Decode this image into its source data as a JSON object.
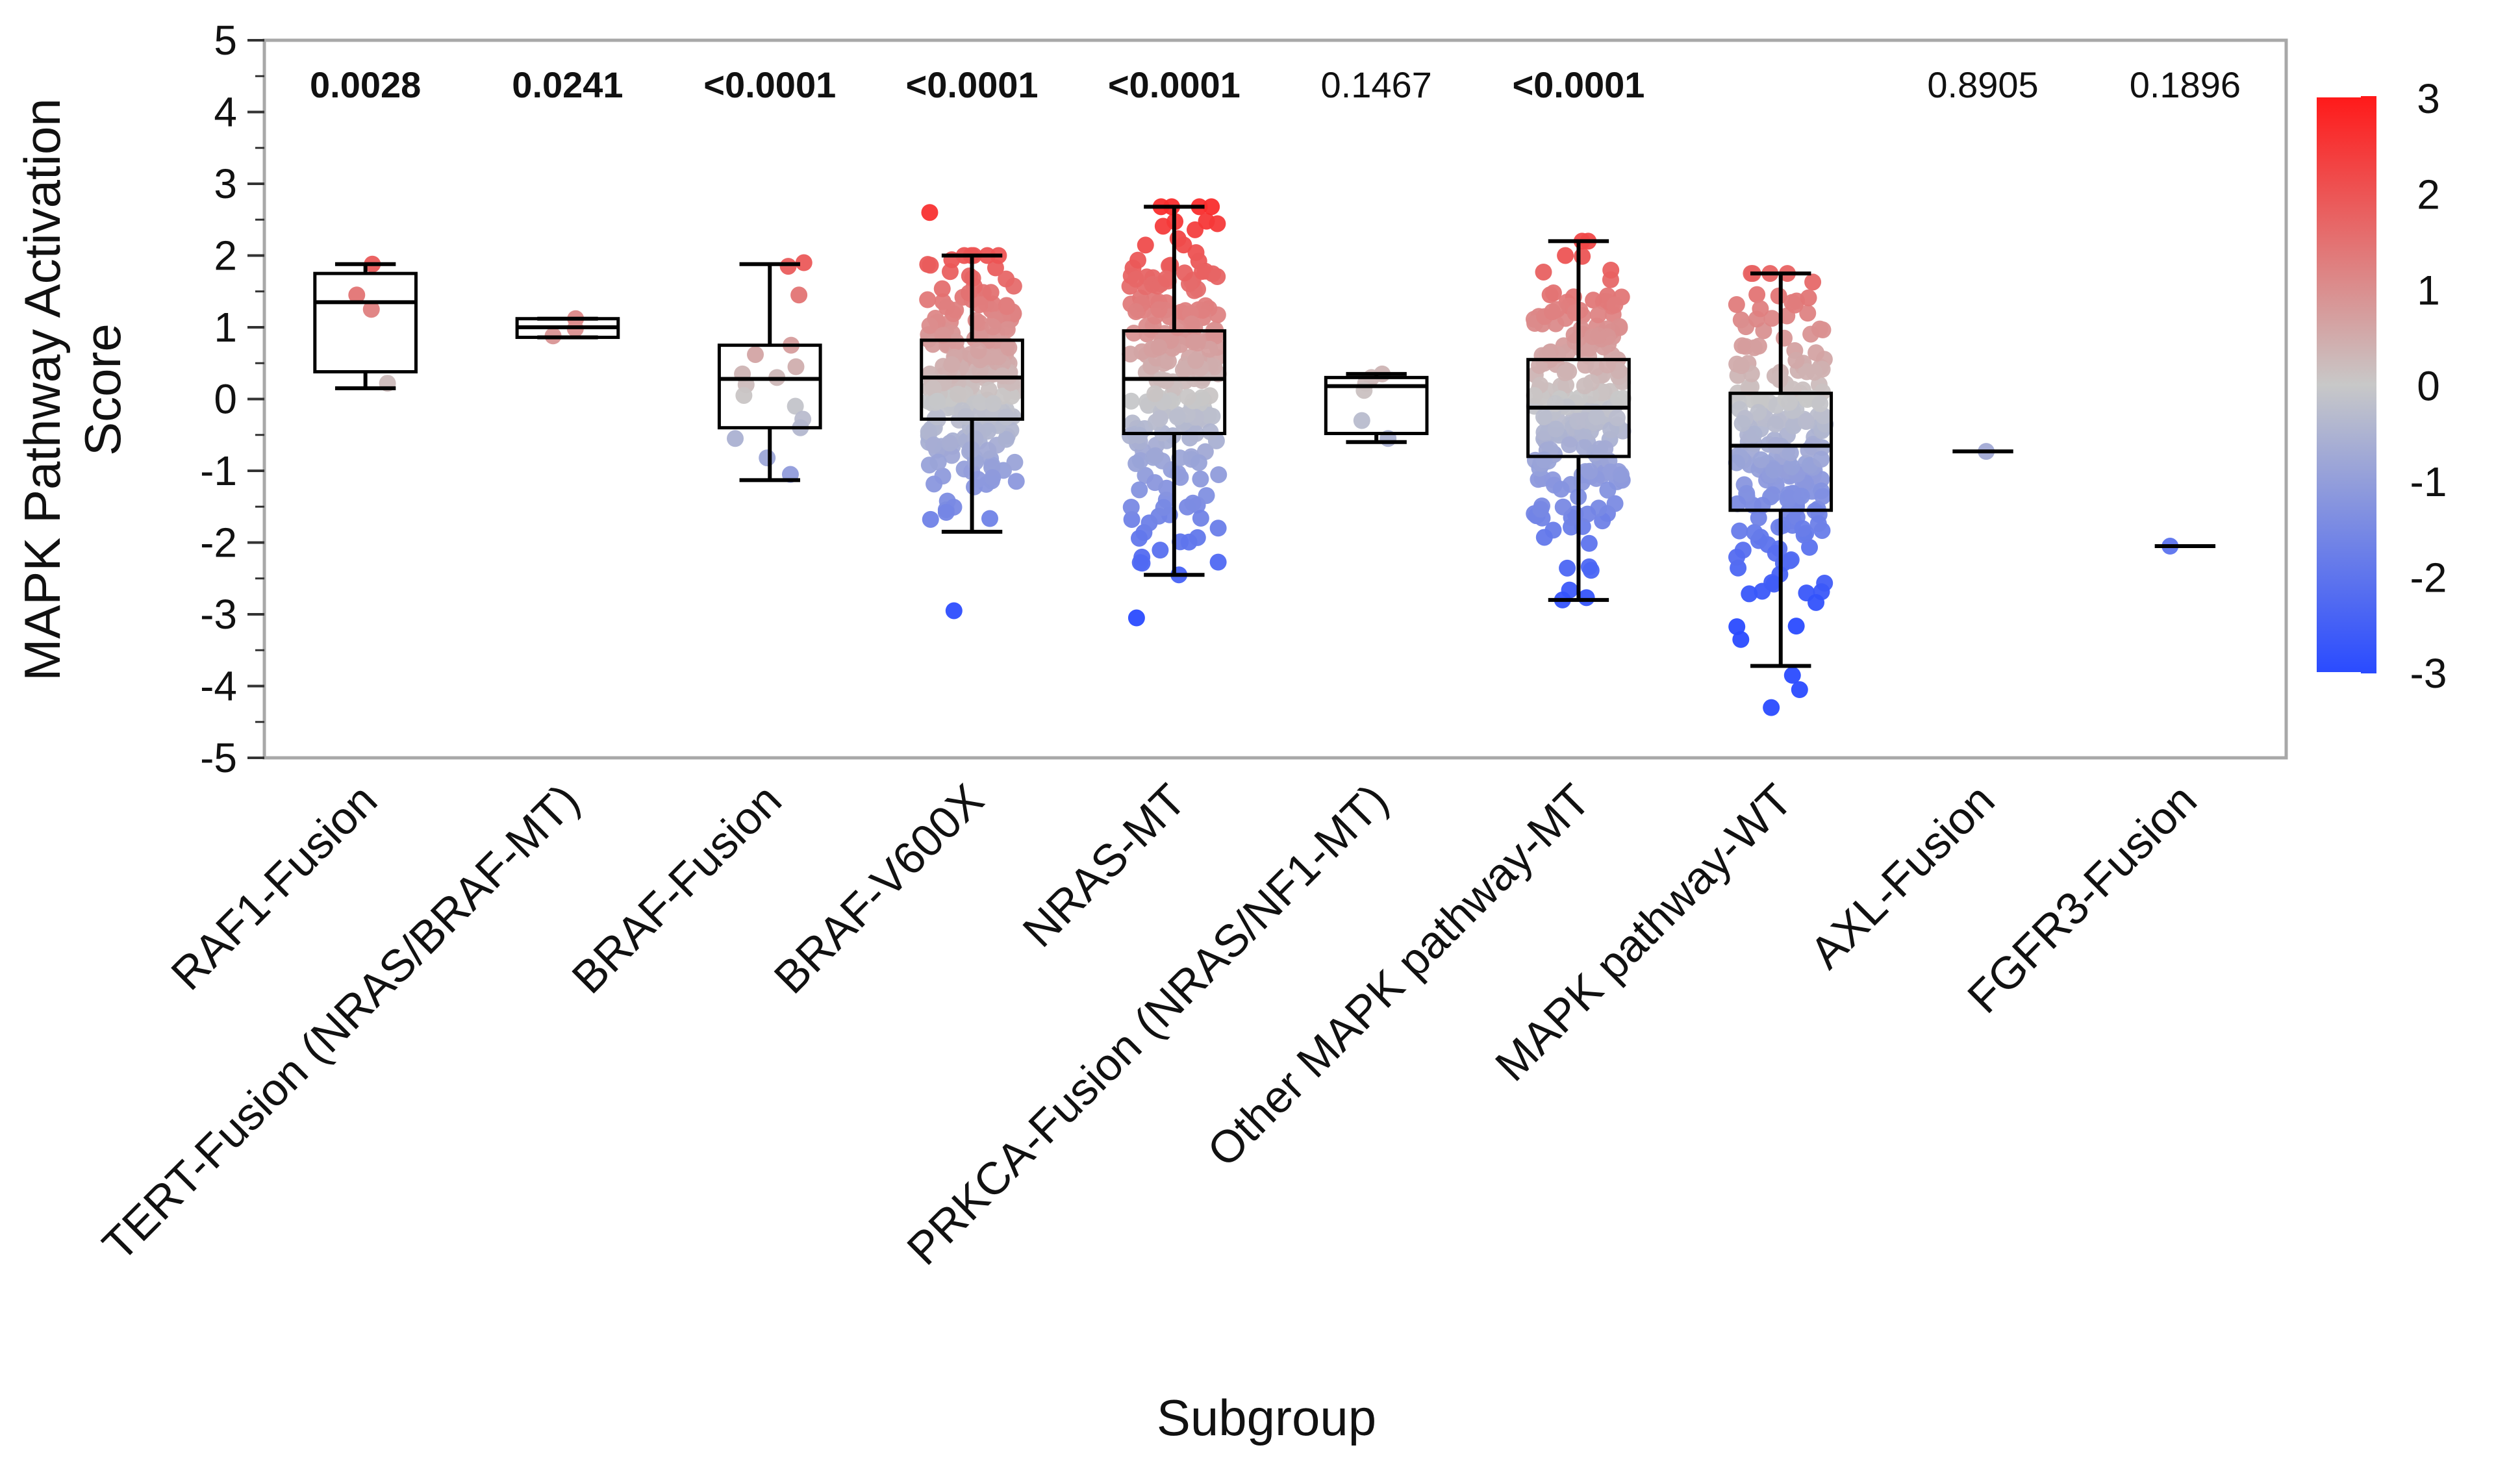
{
  "chart_data": {
    "type": "box",
    "title": "",
    "ylabel_line1": "MAPK Pathway Activation",
    "ylabel_line2": "Score",
    "xlabel": "Subgroup",
    "ylim": [
      -5,
      5
    ],
    "yticks": [
      "5",
      "4",
      "3",
      "2",
      "1",
      "0",
      "-1",
      "-2",
      "-3",
      "-4",
      "-5"
    ],
    "colorbar": {
      "min": -3,
      "max": 3,
      "labels": [
        "3",
        "2",
        "1",
        "0",
        "-1",
        "-2",
        "-3"
      ],
      "colors": {
        "high": "#ff1a1a",
        "mid": "#c8c8c8",
        "low": "#2a4bff"
      }
    },
    "categories": [
      {
        "name": "RAF1-Fusion",
        "pvalue": "0.0028",
        "significant": true,
        "q1": 0.38,
        "median": 1.35,
        "q3": 1.75,
        "whisker_low": 0.15,
        "whisker_high": 1.88,
        "points": [
          1.88,
          1.45,
          1.25,
          0.22
        ]
      },
      {
        "name": "TERT-Fusion (NRAS/BRAF-MT)",
        "pvalue": "0.0241",
        "significant": true,
        "q1": 0.86,
        "median": 1.0,
        "q3": 1.12,
        "whisker_low": 0.86,
        "whisker_high": 1.12,
        "points": [
          1.12,
          0.98,
          0.88
        ]
      },
      {
        "name": "BRAF-Fusion",
        "pvalue": "<0.0001",
        "significant": true,
        "q1": -0.4,
        "median": 0.28,
        "q3": 0.75,
        "whisker_low": -1.13,
        "whisker_high": 1.88,
        "points": [
          1.9,
          1.85,
          1.45,
          0.75,
          0.62,
          0.45,
          0.35,
          0.3,
          0.2,
          0.05,
          -0.1,
          -0.28,
          -0.4,
          -0.55,
          -0.82,
          -1.05
        ]
      },
      {
        "name": "BRAF-V600X",
        "pvalue": "<0.0001",
        "significant": true,
        "q1": -0.28,
        "median": 0.3,
        "q3": 0.82,
        "whisker_low": -1.85,
        "whisker_high": 2.0,
        "n": 260,
        "outliers": [
          2.6,
          -2.95
        ]
      },
      {
        "name": "NRAS-MT",
        "pvalue": "<0.0001",
        "significant": true,
        "q1": -0.48,
        "median": 0.28,
        "q3": 0.95,
        "whisker_low": -2.45,
        "whisker_high": 2.68,
        "n": 230,
        "outliers": [
          -3.05
        ]
      },
      {
        "name": "PRKCA-Fusion (NRAS/NF1-MT)",
        "pvalue": "0.1467",
        "significant": false,
        "q1": -0.48,
        "median": 0.18,
        "q3": 0.3,
        "whisker_low": -0.6,
        "whisker_high": 0.35,
        "points": [
          0.35,
          0.3,
          0.22,
          0.12,
          -0.3,
          -0.55
        ]
      },
      {
        "name": "Other MAPK pathway-MT",
        "pvalue": "<0.0001",
        "significant": true,
        "q1": -0.8,
        "median": -0.12,
        "q3": 0.55,
        "whisker_low": -2.8,
        "whisker_high": 2.2,
        "n": 230,
        "outliers": []
      },
      {
        "name": "MAPK pathway-WT",
        "pvalue": "",
        "significant": false,
        "q1": -1.55,
        "median": -0.65,
        "q3": 0.08,
        "whisker_low": -3.72,
        "whisker_high": 1.75,
        "n": 220,
        "outliers": [
          -3.85,
          -4.05,
          -4.3
        ]
      },
      {
        "name": "AXL-Fusion",
        "pvalue": "0.8905",
        "significant": false,
        "q1": -0.73,
        "median": -0.73,
        "q3": -0.73,
        "whisker_low": -0.73,
        "whisker_high": -0.73,
        "points": [
          -0.73
        ]
      },
      {
        "name": "FGFR3-Fusion",
        "pvalue": "0.1896",
        "significant": false,
        "q1": -2.05,
        "median": -2.05,
        "q3": -2.05,
        "whisker_low": -2.05,
        "whisker_high": -2.05,
        "points": [
          -2.05
        ]
      }
    ]
  }
}
